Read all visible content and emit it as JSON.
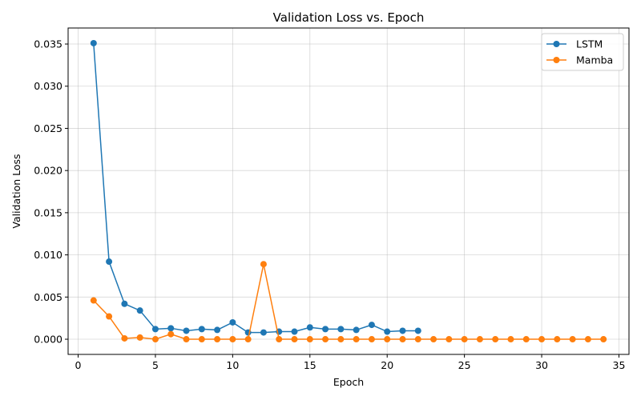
{
  "chart_data": {
    "type": "line",
    "title": "Validation Loss vs. Epoch",
    "xlabel": "Epoch",
    "ylabel": "Validation Loss",
    "xlim": [
      -0.65,
      35.65
    ],
    "ylim": [
      -0.0018,
      0.0369
    ],
    "xticks": [
      0,
      5,
      10,
      15,
      20,
      25,
      30,
      35
    ],
    "xtick_labels": [
      "0",
      "5",
      "10",
      "15",
      "20",
      "25",
      "30",
      "35"
    ],
    "yticks": [
      0.0,
      0.005,
      0.01,
      0.015,
      0.02,
      0.025,
      0.03,
      0.035
    ],
    "ytick_labels": [
      "0.000",
      "0.005",
      "0.010",
      "0.015",
      "0.020",
      "0.025",
      "0.030",
      "0.035"
    ],
    "grid": true,
    "legend_position": "top-right",
    "series": [
      {
        "name": "LSTM",
        "color": "#1f77b4",
        "marker": "circle",
        "x": [
          1,
          2,
          3,
          4,
          5,
          6,
          7,
          8,
          9,
          10,
          11,
          12,
          13,
          14,
          15,
          16,
          17,
          18,
          19,
          20,
          21,
          22
        ],
        "y": [
          0.0351,
          0.0092,
          0.0042,
          0.0034,
          0.0012,
          0.0013,
          0.001,
          0.0012,
          0.0011,
          0.002,
          0.0008,
          0.0008,
          0.0009,
          0.0009,
          0.0014,
          0.0012,
          0.0012,
          0.0011,
          0.0017,
          0.0009,
          0.001,
          0.001
        ]
      },
      {
        "name": "Mamba",
        "color": "#ff7f0e",
        "marker": "circle",
        "x": [
          1,
          2,
          3,
          4,
          5,
          6,
          7,
          8,
          9,
          10,
          11,
          12,
          13,
          14,
          15,
          16,
          17,
          18,
          19,
          20,
          21,
          22,
          23,
          24,
          25,
          26,
          27,
          28,
          29,
          30,
          31,
          32,
          33,
          34
        ],
        "y": [
          0.0046,
          0.0027,
          0.0001,
          0.0002,
          0.0,
          0.0006,
          0.0,
          0.0,
          0.0,
          0.0,
          0.0,
          0.0089,
          0.0,
          0.0,
          0.0,
          0.0,
          0.0,
          0.0,
          0.0,
          0.0,
          0.0,
          0.0,
          0.0,
          0.0,
          0.0,
          0.0,
          0.0,
          0.0,
          0.0,
          0.0,
          0.0,
          0.0,
          0.0,
          0.0
        ]
      }
    ]
  }
}
